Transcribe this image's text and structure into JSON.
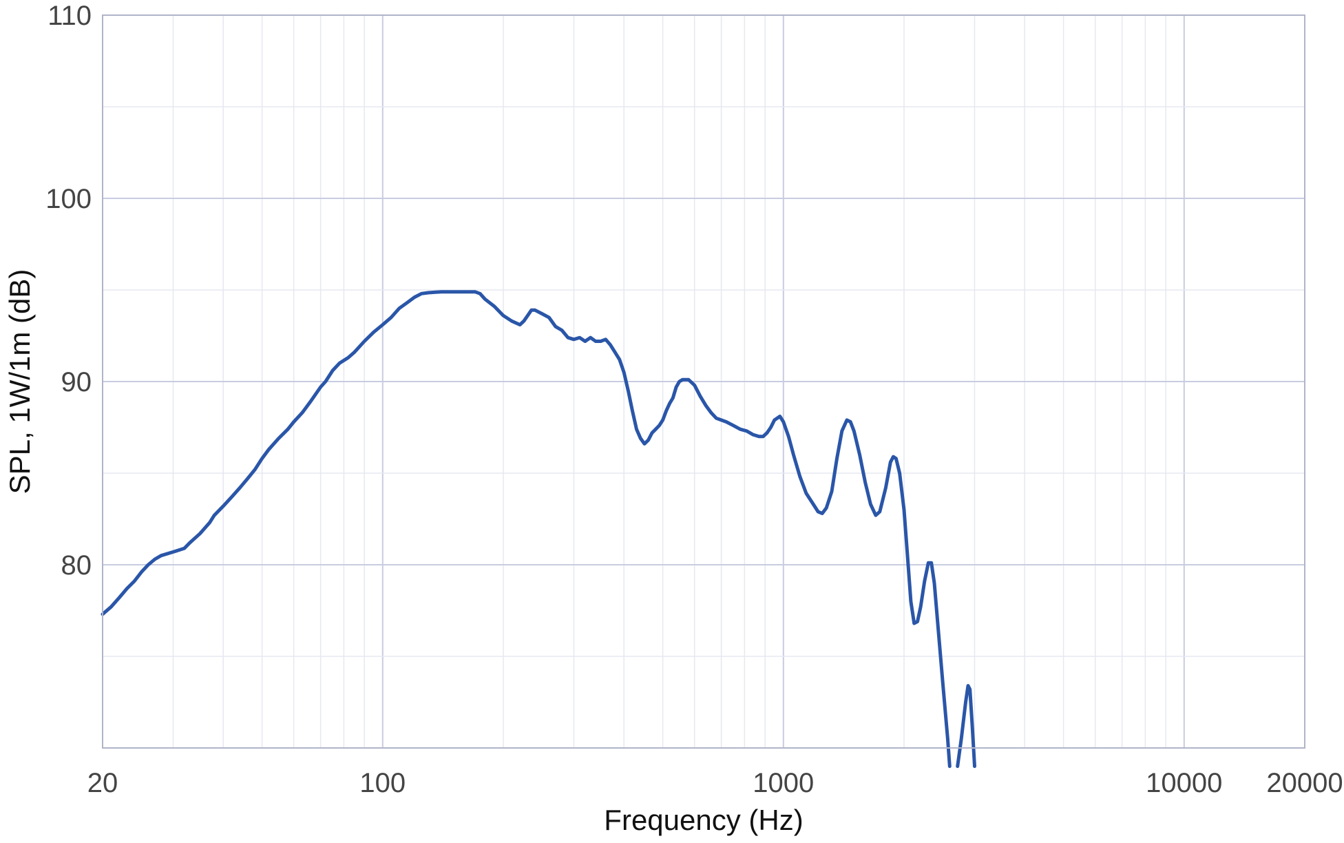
{
  "chart_data": {
    "type": "line",
    "xscale": "log",
    "xlabel": "Frequency (Hz)",
    "ylabel": "SPL, 1W/1m (dB)",
    "xlim": [
      20,
      20000
    ],
    "ylim": [
      70,
      110
    ],
    "x_ticks": [
      20,
      100,
      1000,
      10000,
      20000
    ],
    "y_ticks": [
      80,
      90,
      100,
      110
    ],
    "grid": true,
    "colors": {
      "line": "#2a56a8",
      "major_grid": "#c8cce0",
      "minor_grid": "#e6e8f0",
      "frame": "#b0b4c8"
    },
    "series": [
      {
        "points": [
          [
            20,
            77.3
          ],
          [
            21,
            77.7
          ],
          [
            22,
            78.2
          ],
          [
            23,
            78.7
          ],
          [
            24,
            79.1
          ],
          [
            25,
            79.6
          ],
          [
            26,
            80.0
          ],
          [
            27,
            80.3
          ],
          [
            28,
            80.5
          ],
          [
            30,
            80.7
          ],
          [
            32,
            80.9
          ],
          [
            33,
            81.2
          ],
          [
            35,
            81.7
          ],
          [
            37,
            82.3
          ],
          [
            38,
            82.7
          ],
          [
            40,
            83.2
          ],
          [
            42,
            83.7
          ],
          [
            44,
            84.2
          ],
          [
            46,
            84.7
          ],
          [
            48,
            85.2
          ],
          [
            50,
            85.8
          ],
          [
            52,
            86.3
          ],
          [
            55,
            86.9
          ],
          [
            58,
            87.4
          ],
          [
            60,
            87.8
          ],
          [
            63,
            88.3
          ],
          [
            66,
            88.9
          ],
          [
            70,
            89.7
          ],
          [
            72,
            90.0
          ],
          [
            75,
            90.6
          ],
          [
            78,
            91.0
          ],
          [
            82,
            91.3
          ],
          [
            85,
            91.6
          ],
          [
            90,
            92.2
          ],
          [
            95,
            92.7
          ],
          [
            100,
            93.1
          ],
          [
            105,
            93.5
          ],
          [
            110,
            94.0
          ],
          [
            115,
            94.3
          ],
          [
            120,
            94.6
          ],
          [
            125,
            94.8
          ],
          [
            130,
            94.85
          ],
          [
            140,
            94.9
          ],
          [
            150,
            94.9
          ],
          [
            160,
            94.9
          ],
          [
            170,
            94.9
          ],
          [
            175,
            94.8
          ],
          [
            180,
            94.5
          ],
          [
            190,
            94.1
          ],
          [
            200,
            93.6
          ],
          [
            210,
            93.3
          ],
          [
            220,
            93.1
          ],
          [
            225,
            93.3
          ],
          [
            235,
            93.9
          ],
          [
            240,
            93.9
          ],
          [
            250,
            93.7
          ],
          [
            260,
            93.5
          ],
          [
            270,
            93.0
          ],
          [
            280,
            92.8
          ],
          [
            290,
            92.4
          ],
          [
            300,
            92.3
          ],
          [
            310,
            92.4
          ],
          [
            320,
            92.2
          ],
          [
            330,
            92.4
          ],
          [
            340,
            92.2
          ],
          [
            350,
            92.2
          ],
          [
            360,
            92.3
          ],
          [
            370,
            92.0
          ],
          [
            380,
            91.6
          ],
          [
            390,
            91.2
          ],
          [
            400,
            90.5
          ],
          [
            410,
            89.5
          ],
          [
            420,
            88.4
          ],
          [
            430,
            87.4
          ],
          [
            440,
            86.9
          ],
          [
            450,
            86.6
          ],
          [
            460,
            86.8
          ],
          [
            470,
            87.2
          ],
          [
            480,
            87.4
          ],
          [
            490,
            87.6
          ],
          [
            500,
            87.9
          ],
          [
            510,
            88.4
          ],
          [
            520,
            88.8
          ],
          [
            530,
            89.1
          ],
          [
            540,
            89.7
          ],
          [
            550,
            90.0
          ],
          [
            560,
            90.1
          ],
          [
            580,
            90.1
          ],
          [
            600,
            89.8
          ],
          [
            620,
            89.2
          ],
          [
            640,
            88.7
          ],
          [
            660,
            88.3
          ],
          [
            680,
            88.0
          ],
          [
            700,
            87.9
          ],
          [
            720,
            87.8
          ],
          [
            750,
            87.6
          ],
          [
            780,
            87.4
          ],
          [
            810,
            87.3
          ],
          [
            840,
            87.1
          ],
          [
            870,
            87.0
          ],
          [
            890,
            87.0
          ],
          [
            910,
            87.2
          ],
          [
            930,
            87.5
          ],
          [
            950,
            87.9
          ],
          [
            980,
            88.1
          ],
          [
            1000,
            87.8
          ],
          [
            1030,
            87.0
          ],
          [
            1060,
            86.0
          ],
          [
            1100,
            84.8
          ],
          [
            1140,
            83.9
          ],
          [
            1180,
            83.4
          ],
          [
            1220,
            82.9
          ],
          [
            1250,
            82.8
          ],
          [
            1280,
            83.1
          ],
          [
            1320,
            84.0
          ],
          [
            1360,
            85.8
          ],
          [
            1400,
            87.3
          ],
          [
            1440,
            87.9
          ],
          [
            1470,
            87.8
          ],
          [
            1500,
            87.3
          ],
          [
            1550,
            86.0
          ],
          [
            1600,
            84.5
          ],
          [
            1650,
            83.3
          ],
          [
            1700,
            82.7
          ],
          [
            1740,
            82.9
          ],
          [
            1800,
            84.2
          ],
          [
            1850,
            85.6
          ],
          [
            1880,
            85.9
          ],
          [
            1910,
            85.8
          ],
          [
            1950,
            85.0
          ],
          [
            2000,
            83.0
          ],
          [
            2040,
            80.5
          ],
          [
            2080,
            78.0
          ],
          [
            2120,
            76.8
          ],
          [
            2160,
            76.9
          ],
          [
            2200,
            77.7
          ],
          [
            2250,
            79.1
          ],
          [
            2300,
            80.1
          ],
          [
            2340,
            80.1
          ],
          [
            2380,
            79.0
          ],
          [
            2440,
            76.2
          ],
          [
            2500,
            73.5
          ],
          [
            2570,
            70.5
          ],
          [
            2600,
            69.0
          ]
        ]
      },
      {
        "points": [
          [
            2720,
            69.0
          ],
          [
            2780,
            70.5
          ],
          [
            2850,
            72.5
          ],
          [
            2890,
            73.4
          ],
          [
            2920,
            73.2
          ],
          [
            2960,
            71.2
          ],
          [
            3000,
            69.0
          ]
        ]
      }
    ]
  }
}
